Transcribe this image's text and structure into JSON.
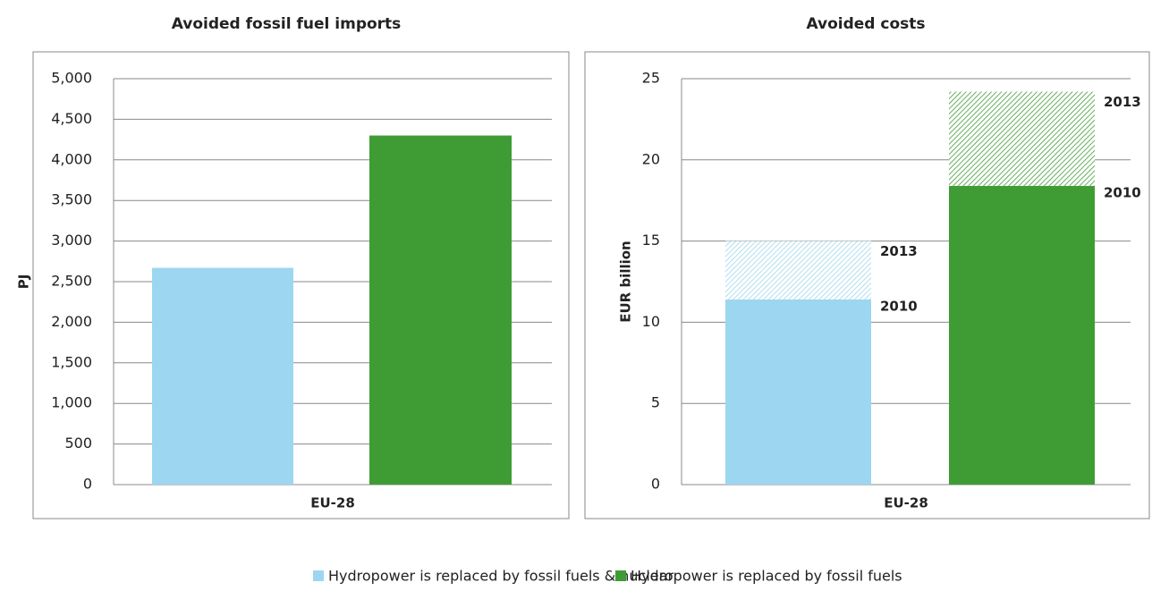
{
  "chart_data": [
    {
      "type": "bar",
      "title": "Avoided fossil fuel imports",
      "y_label": "PJ",
      "categories": [
        "EU-28"
      ],
      "series": [
        {
          "name": "Hydropower is replaced by fossil fuels & nuclear",
          "color": "#9dd6f0",
          "values": [
            2670
          ]
        },
        {
          "name": "Hydropower is replaced by fossil fuels",
          "color": "#3f9c35",
          "values": [
            4300
          ]
        }
      ],
      "ylim": [
        0,
        5000
      ],
      "yticks": [
        0,
        500,
        {
          "value": 1000,
          "label": "1,000"
        },
        {
          "value": 1500,
          "label": "1,500"
        },
        {
          "value": 2000,
          "label": "2,000"
        },
        {
          "value": 2500,
          "label": "2,500"
        },
        {
          "value": 3000,
          "label": "3,000"
        },
        {
          "value": 3500,
          "label": "3,500"
        },
        {
          "value": 4000,
          "label": "4,000"
        },
        {
          "value": 4500,
          "label": "4,500"
        },
        {
          "value": 5000,
          "label": "5,000"
        }
      ],
      "grid": true
    },
    {
      "type": "stacked_bar",
      "title": "Avoided costs",
      "y_label": "EUR billion",
      "categories": [
        "EU-28"
      ],
      "bars": [
        {
          "color": "#9dd6f0",
          "segments": [
            {
              "name": "2010",
              "value": 11.4
            },
            {
              "name": "2013",
              "value": 3.6,
              "hatched": true
            }
          ]
        },
        {
          "color": "#3f9c35",
          "segments": [
            {
              "name": "2010",
              "value": 18.4
            },
            {
              "name": "2013",
              "value": 5.8,
              "hatched": true
            }
          ]
        }
      ],
      "ylim": [
        0,
        25
      ],
      "yticks": [
        0,
        5,
        10,
        15,
        20,
        25
      ],
      "grid": true
    }
  ]
}
